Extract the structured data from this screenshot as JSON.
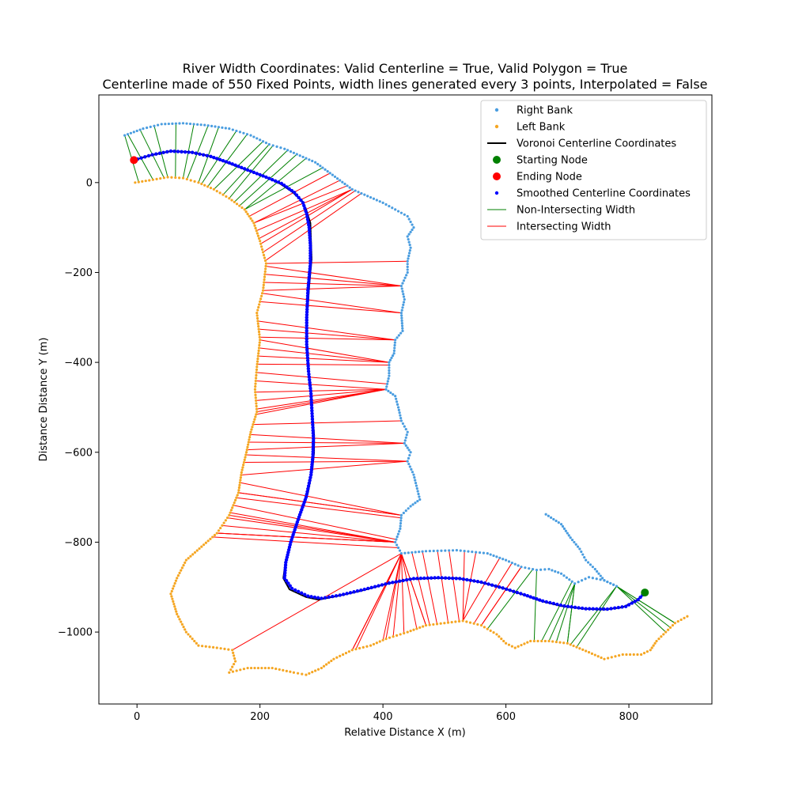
{
  "chart_data": {
    "type": "scatter",
    "title": "River Width Coordinates: Valid Centerline = True, Valid Polygon = True",
    "subtitle": "Centerline made of 550 Fixed Points, width lines generated every 3 points, Interpolated = False",
    "xlabel": "Relative Distance X (m)",
    "ylabel": "Distance Distance Y (m)",
    "xlim": [
      -62,
      935
    ],
    "ylim": [
      -1160,
      195
    ],
    "xticks": [
      0,
      200,
      400,
      600,
      800
    ],
    "yticks": [
      0,
      -200,
      -400,
      -600,
      -800,
      -1000
    ],
    "grid": false,
    "legend_position": "top-right",
    "colors": {
      "right_bank": "#4a9de0",
      "left_bank": "#f5a623",
      "voronoi": "#000000",
      "start": "#008000",
      "end": "#ff0000",
      "smoothed": "#0000ff",
      "non_intersecting": "#008000",
      "intersecting": "#ff0000"
    },
    "legend": [
      {
        "key": "right_bank",
        "label": "Right Bank",
        "marker": "dot-small"
      },
      {
        "key": "left_bank",
        "label": "Left Bank",
        "marker": "dot-small"
      },
      {
        "key": "voronoi",
        "label": "Voronoi Centerline Coordinates",
        "marker": "line"
      },
      {
        "key": "start",
        "label": "Starting Node",
        "marker": "dot-large"
      },
      {
        "key": "end",
        "label": "Ending Node",
        "marker": "dot-large"
      },
      {
        "key": "smoothed",
        "label": "Smoothed Centerline Coordinates",
        "marker": "dot-small"
      },
      {
        "key": "non_intersecting",
        "label": "Non-Intersecting Width",
        "marker": "thin-line"
      },
      {
        "key": "intersecting",
        "label": "Intersecting Width",
        "marker": "thin-line"
      }
    ],
    "series": {
      "right_bank": [
        [
          -20,
          105
        ],
        [
          10,
          120
        ],
        [
          40,
          130
        ],
        [
          75,
          132
        ],
        [
          110,
          128
        ],
        [
          150,
          120
        ],
        [
          185,
          105
        ],
        [
          215,
          85
        ],
        [
          240,
          75
        ],
        [
          265,
          60
        ],
        [
          290,
          45
        ],
        [
          310,
          25
        ],
        [
          330,
          5
        ],
        [
          350,
          -15
        ],
        [
          375,
          -30
        ],
        [
          400,
          -45
        ],
        [
          420,
          -60
        ],
        [
          440,
          -75
        ],
        [
          450,
          -100
        ],
        [
          440,
          -120
        ],
        [
          445,
          -145
        ],
        [
          440,
          -175
        ],
        [
          440,
          -200
        ],
        [
          430,
          -230
        ],
        [
          435,
          -260
        ],
        [
          430,
          -290
        ],
        [
          432,
          -330
        ],
        [
          420,
          -350
        ],
        [
          418,
          -380
        ],
        [
          410,
          -400
        ],
        [
          410,
          -430
        ],
        [
          405,
          -460
        ],
        [
          420,
          -475
        ],
        [
          425,
          -500
        ],
        [
          430,
          -530
        ],
        [
          440,
          -555
        ],
        [
          435,
          -580
        ],
        [
          445,
          -600
        ],
        [
          440,
          -620
        ],
        [
          450,
          -650
        ],
        [
          460,
          -705
        ],
        [
          445,
          -720
        ],
        [
          430,
          -740
        ],
        [
          428,
          -770
        ],
        [
          420,
          -800
        ],
        [
          430,
          -825
        ],
        [
          470,
          -820
        ],
        [
          520,
          -818
        ],
        [
          570,
          -825
        ],
        [
          600,
          -840
        ],
        [
          625,
          -855
        ],
        [
          650,
          -862
        ],
        [
          670,
          -860
        ],
        [
          690,
          -870
        ],
        [
          712,
          -892
        ],
        [
          735,
          -878
        ],
        [
          760,
          -885
        ],
        [
          780,
          -898
        ],
        [
          760,
          -885
        ],
        [
          745,
          -860
        ],
        [
          730,
          -840
        ],
        [
          720,
          -815
        ],
        [
          705,
          -790
        ],
        [
          690,
          -760
        ],
        [
          665,
          -738
        ]
      ],
      "left_bank": [
        [
          -3,
          0
        ],
        [
          20,
          5
        ],
        [
          50,
          12
        ],
        [
          75,
          10
        ],
        [
          100,
          0
        ],
        [
          125,
          -15
        ],
        [
          150,
          -35
        ],
        [
          175,
          -60
        ],
        [
          190,
          -90
        ],
        [
          200,
          -130
        ],
        [
          210,
          -180
        ],
        [
          205,
          -240
        ],
        [
          195,
          -290
        ],
        [
          200,
          -350
        ],
        [
          195,
          -410
        ],
        [
          192,
          -460
        ],
        [
          195,
          -510
        ],
        [
          185,
          -555
        ],
        [
          178,
          -600
        ],
        [
          170,
          -645
        ],
        [
          165,
          -690
        ],
        [
          150,
          -740
        ],
        [
          130,
          -780
        ],
        [
          105,
          -810
        ],
        [
          80,
          -840
        ],
        [
          65,
          -880
        ],
        [
          55,
          -915
        ],
        [
          65,
          -960
        ],
        [
          80,
          -1000
        ],
        [
          100,
          -1030
        ],
        [
          130,
          -1035
        ],
        [
          155,
          -1040
        ],
        [
          160,
          -1065
        ],
        [
          150,
          -1090
        ],
        [
          180,
          -1080
        ],
        [
          220,
          -1080
        ],
        [
          255,
          -1090
        ],
        [
          275,
          -1095
        ],
        [
          300,
          -1080
        ],
        [
          320,
          -1060
        ],
        [
          350,
          -1040
        ],
        [
          380,
          -1030
        ],
        [
          405,
          -1015
        ],
        [
          440,
          -1000
        ],
        [
          470,
          -985
        ],
        [
          500,
          -980
        ],
        [
          530,
          -975
        ],
        [
          560,
          -985
        ],
        [
          585,
          -1005
        ],
        [
          600,
          -1025
        ],
        [
          615,
          -1035
        ],
        [
          640,
          -1020
        ],
        [
          670,
          -1020
        ],
        [
          700,
          -1025
        ],
        [
          735,
          -1045
        ],
        [
          760,
          -1060
        ],
        [
          790,
          -1050
        ],
        [
          820,
          -1050
        ],
        [
          835,
          -1040
        ],
        [
          845,
          -1020
        ],
        [
          860,
          -1000
        ],
        [
          875,
          -980
        ],
        [
          895,
          -965
        ]
      ],
      "voronoi": [
        [
          -5,
          50
        ],
        [
          20,
          60
        ],
        [
          55,
          70
        ],
        [
          85,
          68
        ],
        [
          115,
          60
        ],
        [
          145,
          45
        ],
        [
          175,
          30
        ],
        [
          205,
          15
        ],
        [
          230,
          0
        ],
        [
          252,
          -20
        ],
        [
          268,
          -40
        ],
        [
          275,
          -60
        ],
        [
          282,
          -90
        ],
        [
          283,
          -130
        ],
        [
          284,
          -170
        ],
        [
          280,
          -230
        ],
        [
          277,
          -290
        ],
        [
          276,
          -350
        ],
        [
          278,
          -410
        ],
        [
          283,
          -460
        ],
        [
          285,
          -510
        ],
        [
          288,
          -560
        ],
        [
          288,
          -600
        ],
        [
          285,
          -640
        ],
        [
          278,
          -690
        ],
        [
          265,
          -740
        ],
        [
          252,
          -790
        ],
        [
          242,
          -840
        ],
        [
          238,
          -880
        ],
        [
          248,
          -905
        ],
        [
          275,
          -922
        ],
        [
          295,
          -928
        ],
        [
          325,
          -920
        ],
        [
          365,
          -908
        ],
        [
          405,
          -893
        ],
        [
          445,
          -882
        ],
        [
          485,
          -880
        ],
        [
          520,
          -880
        ],
        [
          555,
          -888
        ],
        [
          590,
          -900
        ],
        [
          625,
          -915
        ],
        [
          655,
          -930
        ],
        [
          690,
          -942
        ],
        [
          725,
          -948
        ],
        [
          760,
          -950
        ],
        [
          790,
          -945
        ],
        [
          812,
          -930
        ],
        [
          828,
          -912
        ]
      ],
      "smoothed": [
        [
          -5,
          50
        ],
        [
          25,
          62
        ],
        [
          55,
          70
        ],
        [
          90,
          67
        ],
        [
          120,
          58
        ],
        [
          150,
          44
        ],
        [
          180,
          28
        ],
        [
          210,
          12
        ],
        [
          235,
          -2
        ],
        [
          256,
          -22
        ],
        [
          270,
          -45
        ],
        [
          276,
          -70
        ],
        [
          280,
          -100
        ],
        [
          282,
          -140
        ],
        [
          282,
          -180
        ],
        [
          278,
          -240
        ],
        [
          276,
          -300
        ],
        [
          276,
          -360
        ],
        [
          279,
          -420
        ],
        [
          283,
          -470
        ],
        [
          285,
          -520
        ],
        [
          287,
          -570
        ],
        [
          286,
          -610
        ],
        [
          283,
          -650
        ],
        [
          275,
          -700
        ],
        [
          262,
          -750
        ],
        [
          250,
          -800
        ],
        [
          242,
          -845
        ],
        [
          240,
          -880
        ],
        [
          252,
          -903
        ],
        [
          278,
          -920
        ],
        [
          300,
          -925
        ],
        [
          330,
          -918
        ],
        [
          370,
          -905
        ],
        [
          410,
          -891
        ],
        [
          450,
          -881
        ],
        [
          490,
          -879
        ],
        [
          525,
          -881
        ],
        [
          560,
          -889
        ],
        [
          595,
          -902
        ],
        [
          630,
          -917
        ],
        [
          660,
          -931
        ],
        [
          695,
          -942
        ],
        [
          730,
          -948
        ],
        [
          765,
          -949
        ],
        [
          795,
          -943
        ],
        [
          815,
          -928
        ],
        [
          826,
          -912
        ]
      ],
      "start": [
        826,
        -912
      ],
      "end": [
        -5,
        50
      ]
    }
  }
}
